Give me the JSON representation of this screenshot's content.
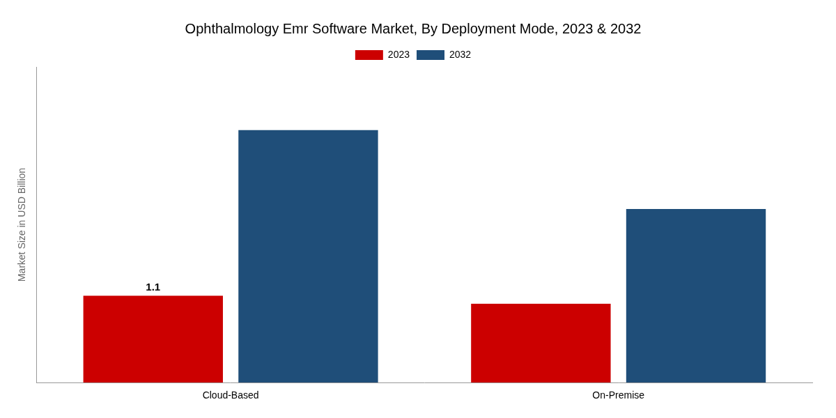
{
  "chart_data": {
    "type": "bar",
    "title": "Ophthalmology Emr Software Market, By Deployment Mode, 2023 & 2032",
    "ylabel": "Market Size in USD Billion",
    "categories": [
      "Cloud-Based",
      "On-Premise"
    ],
    "series": [
      {
        "name": "2023",
        "color": "#CC0000",
        "values": [
          1.1,
          1.0
        ]
      },
      {
        "name": "2032",
        "color": "#1F4E79",
        "values": [
          3.2,
          2.2
        ]
      }
    ],
    "ylim": [
      0,
      4.0
    ],
    "grid": false,
    "legend": "top",
    "tick_labels": "x",
    "annotations": [
      {
        "text": "1.1",
        "category": "Cloud-Based",
        "series": "2023"
      }
    ]
  }
}
